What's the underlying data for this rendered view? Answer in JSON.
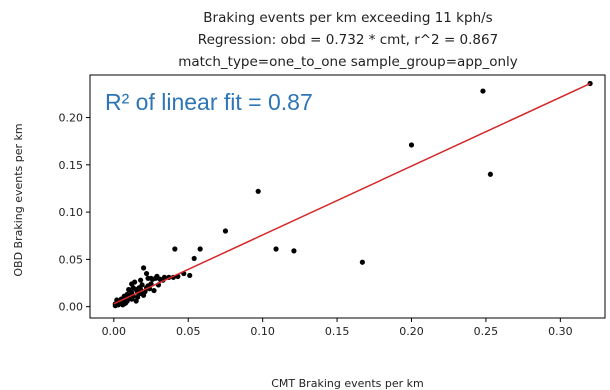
{
  "chart_data": {
    "type": "scatter",
    "title_lines": [
      "Braking events per km exceeding 11 kph/s",
      "Regression: obd = 0.732 * cmt, r^2 = 0.867",
      "match_type=one_to_one sample_group=app_only"
    ],
    "annotation": "R² of linear fit = 0.87",
    "xlabel": "CMT Braking events per km",
    "ylabel": "OBD Braking events per km",
    "xlim": [
      -0.016,
      0.33
    ],
    "ylim": [
      -0.012,
      0.245
    ],
    "xticks": [
      0.0,
      0.05,
      0.1,
      0.15,
      0.2,
      0.25,
      0.3
    ],
    "xtick_labels": [
      "0.00",
      "0.05",
      "0.10",
      "0.15",
      "0.20",
      "0.25",
      "0.30"
    ],
    "yticks": [
      0.0,
      0.05,
      0.1,
      0.15,
      0.2
    ],
    "ytick_labels": [
      "0.00",
      "0.05",
      "0.10",
      "0.15",
      "0.20"
    ],
    "grid": false,
    "colors": {
      "points": "#000000",
      "fit_line": "#d62728",
      "annotation": "#2e75b6"
    },
    "fit_line": {
      "x": [
        0.0,
        0.32
      ],
      "y": [
        0.003,
        0.236
      ]
    },
    "points": [
      [
        0.32,
        0.236
      ],
      [
        0.248,
        0.228
      ],
      [
        0.253,
        0.14
      ],
      [
        0.2,
        0.171
      ],
      [
        0.167,
        0.047
      ],
      [
        0.097,
        0.122
      ],
      [
        0.075,
        0.08
      ],
      [
        0.121,
        0.059
      ],
      [
        0.109,
        0.061
      ],
      [
        0.058,
        0.061
      ],
      [
        0.054,
        0.051
      ],
      [
        0.041,
        0.061
      ],
      [
        0.047,
        0.035
      ],
      [
        0.051,
        0.033
      ],
      [
        0.043,
        0.032
      ],
      [
        0.04,
        0.031
      ],
      [
        0.037,
        0.031
      ],
      [
        0.034,
        0.031
      ],
      [
        0.031,
        0.029
      ],
      [
        0.029,
        0.032
      ],
      [
        0.028,
        0.03
      ],
      [
        0.026,
        0.029
      ],
      [
        0.025,
        0.024
      ],
      [
        0.023,
        0.022
      ],
      [
        0.022,
        0.02
      ],
      [
        0.021,
        0.016
      ],
      [
        0.02,
        0.041
      ],
      [
        0.022,
        0.035
      ],
      [
        0.019,
        0.023
      ],
      [
        0.018,
        0.018
      ],
      [
        0.017,
        0.02
      ],
      [
        0.016,
        0.015
      ],
      [
        0.015,
        0.018
      ],
      [
        0.014,
        0.026
      ],
      [
        0.013,
        0.02
      ],
      [
        0.012,
        0.024
      ],
      [
        0.012,
        0.015
      ],
      [
        0.011,
        0.012
      ],
      [
        0.01,
        0.01
      ],
      [
        0.009,
        0.013
      ],
      [
        0.008,
        0.009
      ],
      [
        0.007,
        0.011
      ],
      [
        0.006,
        0.007
      ],
      [
        0.005,
        0.008
      ],
      [
        0.004,
        0.005
      ],
      [
        0.003,
        0.006
      ],
      [
        0.002,
        0.004
      ],
      [
        0.001,
        0.003
      ],
      [
        0.002,
        0.007
      ],
      [
        0.005,
        0.004
      ],
      [
        0.009,
        0.006
      ],
      [
        0.013,
        0.011
      ],
      [
        0.016,
        0.01
      ],
      [
        0.018,
        0.014
      ],
      [
        0.02,
        0.012
      ],
      [
        0.024,
        0.019
      ],
      [
        0.027,
        0.017
      ],
      [
        0.01,
        0.018
      ],
      [
        0.012,
        0.008
      ],
      [
        0.007,
        0.003
      ],
      [
        0.015,
        0.006
      ],
      [
        0.03,
        0.023
      ],
      [
        0.025,
        0.03
      ],
      [
        0.033,
        0.028
      ],
      [
        0.018,
        0.028
      ],
      [
        0.023,
        0.03
      ],
      [
        0.003,
        0.002
      ],
      [
        0.006,
        0.002
      ],
      [
        0.001,
        0.001
      ],
      [
        0.008,
        0.004
      ]
    ]
  }
}
